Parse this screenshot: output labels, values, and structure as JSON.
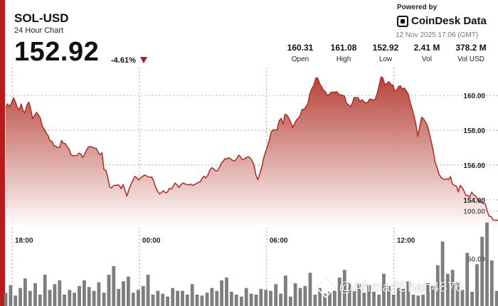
{
  "header": {
    "pair": "SOL-USD",
    "subtitle": "24 Hour Chart",
    "price": "152.92",
    "change": "-4.61%"
  },
  "brand": {
    "powered_by": "Powered by",
    "name": "CoinDesk Data",
    "timestamp": "12 Nov 2025 17:06 (GMT)"
  },
  "stats": [
    {
      "value": "160.31",
      "label": "Open"
    },
    {
      "value": "161.08",
      "label": "High"
    },
    {
      "value": "152.92",
      "label": "Low"
    },
    {
      "value": "2.41 M",
      "label": "Vol"
    },
    {
      "value": "378.2 M",
      "label": "Vol USD"
    }
  ],
  "watermark": "@AhmadShah4876",
  "colors": {
    "line": "#b32a20",
    "fill_top": "#b33a30",
    "accent": "#b71c1c",
    "volume_bar": "#777777",
    "down_arrow": "#a51d1d"
  },
  "chart_data": {
    "type": "area",
    "price_axis": {
      "ticks": [
        "160.00",
        "158.00",
        "156.00",
        "154.00"
      ],
      "tick_values": [
        160,
        158,
        156,
        154
      ],
      "ylim": [
        152.4,
        161.6
      ]
    },
    "volume_axis": {
      "ticks": [
        "100.00",
        "50.00"
      ],
      "tick_values": [
        100,
        50
      ],
      "ylim": [
        0,
        120
      ]
    },
    "x_ticks": [
      "18:00",
      "00:00",
      "06:00",
      "12:00"
    ],
    "x_tick_hours": [
      1,
      7,
      13,
      19
    ],
    "x_range_hours": [
      0.7,
      23.9
    ],
    "price_series": {
      "hours": [
        0.7,
        0.79,
        0.88,
        0.97,
        1.07,
        1.16,
        1.25,
        1.34,
        1.43,
        1.52,
        1.61,
        1.7,
        1.79,
        1.88,
        1.97,
        2.06,
        2.15,
        2.24,
        2.33,
        2.42,
        2.52,
        2.61,
        2.7,
        2.79,
        2.88,
        2.97,
        3.06,
        3.15,
        3.24,
        3.33,
        3.42,
        3.51,
        3.6,
        3.69,
        3.78,
        3.88,
        3.97,
        4.06,
        4.15,
        4.24,
        4.33,
        4.42,
        4.51,
        4.6,
        4.69,
        4.78,
        4.87,
        4.96,
        5.05,
        5.14,
        5.24,
        5.33,
        5.42,
        5.51,
        5.6,
        5.69,
        5.78,
        5.87,
        5.96,
        6.05,
        6.14,
        6.23,
        6.32,
        6.41,
        6.51,
        6.6,
        6.69,
        6.78,
        6.87,
        6.96,
        7.05,
        7.14,
        7.23,
        7.32,
        7.41,
        7.5,
        7.59,
        7.69,
        7.78,
        7.87,
        7.96,
        8.05,
        8.14,
        8.23,
        8.32,
        8.41,
        8.5,
        8.59,
        8.68,
        8.77,
        8.86,
        8.95,
        9.05,
        9.14,
        9.23,
        9.32,
        9.41,
        9.5,
        9.59,
        9.68,
        9.77,
        9.86,
        9.95,
        10.04,
        10.13,
        10.22,
        10.32,
        10.41,
        10.5,
        10.59,
        10.68,
        10.77,
        10.86,
        10.95,
        11.04,
        11.13,
        11.22,
        11.31,
        11.41,
        11.5,
        11.59,
        11.68,
        11.77,
        11.86,
        11.95,
        12.04,
        12.13,
        12.22,
        12.31,
        12.4,
        12.49,
        12.58,
        12.68,
        12.77,
        12.86,
        12.95,
        13.04,
        13.13,
        13.22,
        13.31,
        13.4,
        13.49,
        13.58,
        13.68,
        13.77,
        13.86,
        13.95,
        14.04,
        14.13,
        14.22,
        14.31,
        14.4,
        14.49,
        14.58,
        14.67,
        14.76,
        14.85,
        14.94,
        15.04,
        15.13,
        15.22,
        15.31,
        15.4,
        15.49,
        15.58,
        15.67,
        15.76,
        15.85,
        15.94,
        16.03,
        16.13,
        16.22,
        16.31,
        16.4,
        16.49,
        16.58,
        16.67,
        16.76,
        16.85,
        16.94,
        17.03,
        17.12,
        17.21,
        17.31,
        17.4,
        17.49,
        17.58,
        17.67,
        17.76,
        17.85,
        17.94,
        18.03,
        18.12,
        18.21,
        18.3,
        18.39,
        18.48,
        18.57,
        18.67,
        18.76,
        18.85,
        18.94,
        19.03,
        19.12,
        19.21,
        19.3,
        19.39,
        19.48,
        19.57,
        19.67,
        19.76,
        19.85,
        19.94,
        20.03,
        20.12,
        20.21,
        20.3,
        20.39,
        20.48,
        20.57,
        20.66,
        20.76,
        20.85,
        20.94,
        21.03,
        21.12,
        21.21,
        21.3,
        21.39,
        21.48,
        21.57,
        21.66,
        21.75,
        21.84,
        21.94,
        22.03,
        22.12,
        22.21,
        22.3,
        22.39,
        22.48,
        22.57,
        22.66,
        22.75,
        22.84,
        22.93,
        23.03,
        23.12,
        23.21,
        23.3,
        23.39,
        23.48,
        23.57,
        23.66,
        23.75,
        23.84,
        23.9
      ],
      "prices": [
        159.28,
        159.52,
        159.35,
        159.56,
        159.86,
        159.62,
        159.3,
        159.17,
        159.51,
        159.13,
        159.01,
        159.44,
        159.62,
        159.21,
        158.66,
        158.86,
        159.03,
        158.89,
        158.7,
        158.25,
        158.06,
        157.83,
        157.69,
        157.39,
        157.37,
        157.12,
        157.08,
        157.0,
        157.02,
        157.41,
        157.26,
        157.23,
        157.05,
        156.9,
        156.59,
        156.54,
        156.54,
        156.56,
        156.69,
        156.63,
        156.43,
        156.63,
        156.86,
        157.04,
        157.07,
        157.03,
        156.97,
        156.97,
        156.75,
        156.59,
        156.7,
        155.75,
        155.7,
        155.29,
        154.73,
        154.68,
        154.82,
        154.84,
        154.85,
        154.84,
        154.64,
        154.88,
        154.57,
        154.21,
        154.61,
        154.88,
        155.12,
        155.35,
        155.29,
        155.14,
        155.27,
        155.33,
        155.43,
        155.39,
        155.33,
        155.3,
        155.31,
        155.02,
        154.69,
        154.47,
        154.34,
        154.44,
        154.53,
        154.4,
        154.45,
        154.66,
        154.61,
        154.77,
        154.97,
        154.86,
        154.71,
        154.86,
        154.98,
        154.92,
        154.89,
        154.85,
        154.91,
        154.84,
        154.87,
        154.94,
        155.0,
        155.03,
        155.22,
        155.36,
        155.26,
        155.4,
        155.71,
        155.85,
        155.79,
        155.68,
        155.67,
        155.85,
        156.11,
        156.21,
        156.38,
        156.35,
        156.43,
        156.34,
        156.26,
        156.24,
        156.38,
        156.57,
        156.47,
        156.3,
        156.35,
        156.43,
        156.48,
        156.41,
        156.26,
        155.99,
        155.43,
        155.16,
        155.53,
        155.89,
        156.41,
        156.78,
        157.09,
        157.5,
        157.91,
        158.03,
        158.02,
        158.03,
        158.53,
        158.68,
        158.34,
        158.91,
        158.88,
        158.7,
        158.47,
        158.16,
        158.37,
        158.59,
        158.68,
        158.86,
        159.21,
        159.2,
        159.36,
        159.52,
        160.13,
        160.4,
        160.58,
        160.99,
        161.01,
        160.69,
        160.52,
        160.31,
        160.22,
        160.01,
        160.05,
        160.18,
        160.2,
        160.19,
        160.21,
        160.07,
        160.02,
        160.01,
        159.96,
        159.55,
        159.48,
        159.35,
        159.54,
        159.89,
        159.87,
        159.88,
        159.64,
        159.76,
        159.64,
        159.57,
        159.61,
        159.79,
        159.78,
        159.72,
        159.81,
        160.13,
        160.59,
        161.07,
        161.0,
        160.6,
        160.71,
        160.79,
        160.63,
        160.6,
        160.28,
        160.3,
        160.51,
        160.56,
        160.35,
        160.43,
        160.28,
        160.08,
        159.61,
        159.24,
        158.84,
        158.34,
        157.64,
        158.19,
        158.75,
        158.66,
        158.48,
        158.27,
        157.84,
        157.32,
        156.81,
        156.15,
        155.84,
        155.48,
        155.3,
        155.21,
        155.16,
        155.22,
        155.17,
        155.34,
        154.92,
        154.83,
        154.8,
        154.46,
        154.83,
        154.71,
        154.5,
        154.25,
        154.26,
        154.16,
        154.44,
        154.29,
        154.24,
        154.03,
        153.93,
        153.84,
        153.8,
        153.78,
        153.36,
        153.06,
        153.04,
        152.85,
        152.82,
        152.85,
        152.79,
        152.71,
        152.51,
        152.57,
        152.54,
        152.52,
        152.49,
        152.53,
        152.54,
        152.52,
        152.54,
        152.58,
        153.03,
        153.1,
        153.2,
        153.03,
        152.94,
        152.92
      ]
    },
    "volume_series": {
      "hours": [
        0.7,
        0.93,
        1.16,
        1.39,
        1.62,
        1.85,
        2.09,
        2.32,
        2.55,
        2.78,
        3.01,
        3.24,
        3.47,
        3.71,
        3.94,
        4.17,
        4.4,
        4.63,
        4.86,
        5.09,
        5.33,
        5.56,
        5.79,
        6.02,
        6.25,
        6.48,
        6.71,
        6.95,
        7.18,
        7.41,
        7.64,
        7.87,
        8.1,
        8.33,
        8.57,
        8.8,
        9.03,
        9.26,
        9.49,
        9.72,
        9.95,
        10.19,
        10.42,
        10.65,
        10.88,
        11.11,
        11.34,
        11.57,
        11.81,
        12.04,
        12.27,
        12.5,
        12.73,
        12.96,
        13.19,
        13.43,
        13.66,
        13.89,
        14.12,
        14.35,
        14.58,
        14.81,
        15.05,
        15.28,
        15.51,
        15.74,
        15.97,
        16.2,
        16.43,
        16.67,
        16.9,
        17.13,
        17.36,
        17.59,
        17.82,
        18.05,
        18.29,
        18.52,
        18.75,
        18.98,
        19.21,
        19.44,
        19.67,
        19.91,
        20.14,
        20.37,
        20.6,
        20.83,
        21.06,
        21.29,
        21.53,
        21.76,
        21.99,
        22.22,
        22.45,
        22.68,
        22.91,
        23.15,
        23.38,
        23.61,
        23.84
      ],
      "values": [
        14,
        22,
        11,
        19,
        29,
        16,
        24,
        12,
        33,
        17,
        23,
        27,
        12,
        17,
        14,
        21,
        27,
        20,
        16,
        25,
        14,
        33,
        42,
        18,
        26,
        31,
        14,
        17,
        21,
        33,
        12,
        16,
        13,
        10,
        19,
        16,
        16,
        12,
        23,
        12,
        11,
        14,
        19,
        16,
        27,
        30,
        15,
        12,
        10,
        19,
        13,
        12,
        18,
        17,
        16,
        23,
        13,
        32,
        10,
        24,
        19,
        21,
        35,
        12,
        19,
        13,
        15,
        16,
        30,
        38,
        24,
        16,
        23,
        14,
        22,
        15,
        12,
        34,
        21,
        12,
        19,
        18,
        26,
        12,
        11,
        12,
        24,
        21,
        43,
        68,
        34,
        38,
        25,
        17,
        56,
        15,
        44,
        73,
        88,
        48,
        16
      ]
    }
  }
}
